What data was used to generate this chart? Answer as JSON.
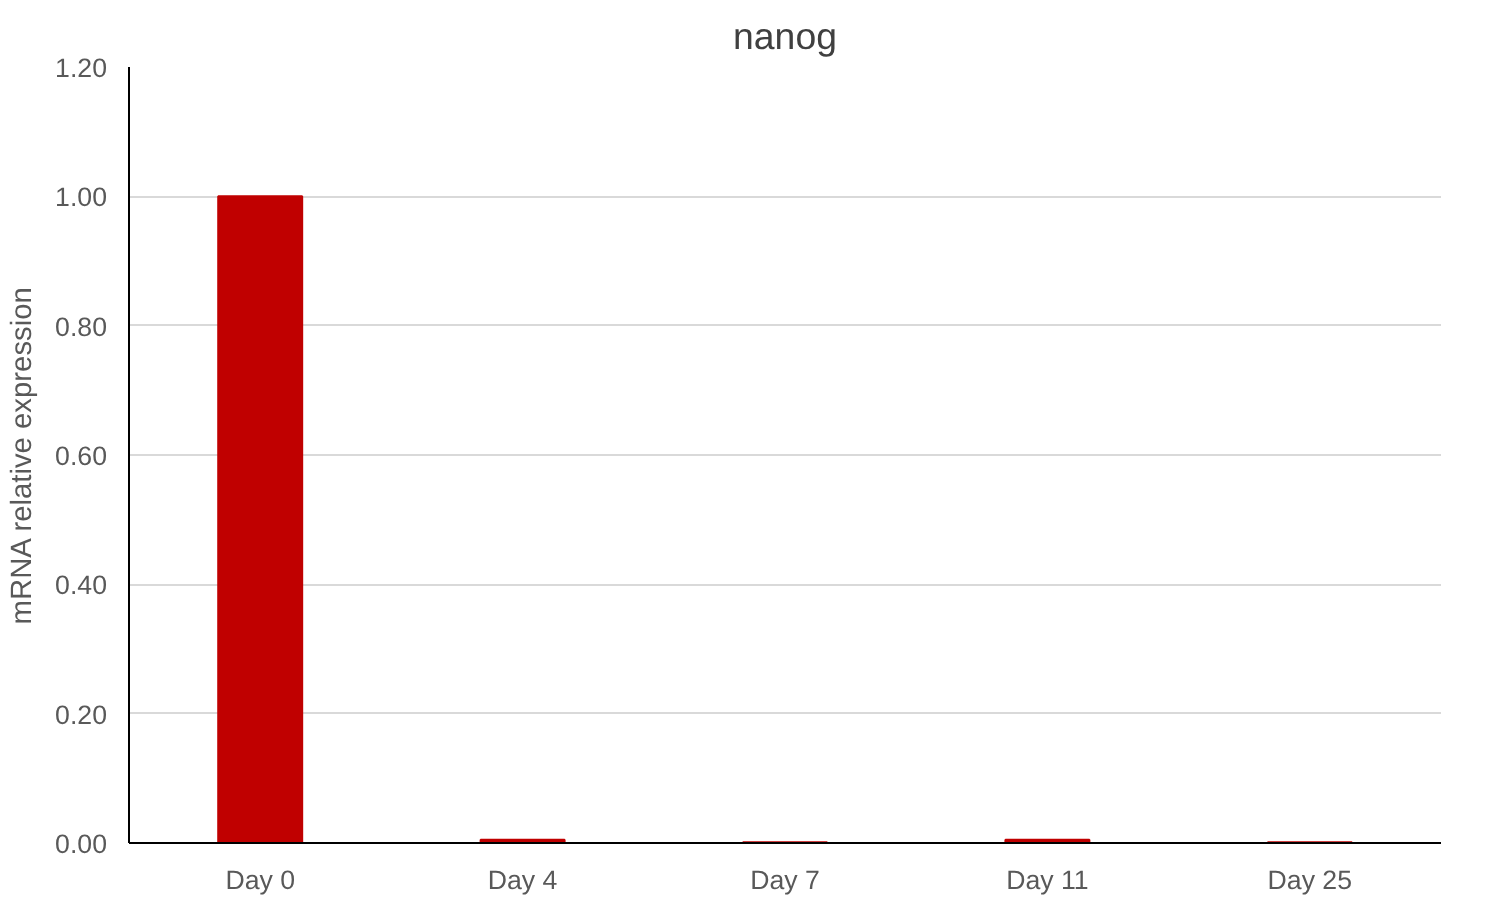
{
  "chart_data": {
    "type": "bar",
    "title": "nanog",
    "ylabel": "mRNA relative expression",
    "categories": [
      "Day 0",
      "Day 4",
      "Day 7",
      "Day 11",
      "Day 25"
    ],
    "values": [
      1.0,
      0.005,
      0.001,
      0.005,
      0.001
    ],
    "color": "#c00000",
    "ylim": [
      0,
      1.2
    ],
    "yticks": [
      {
        "value": 0,
        "label": "0.00"
      },
      {
        "value": 0.2,
        "label": "0.20"
      },
      {
        "value": 0.4,
        "label": "0.40"
      },
      {
        "value": 0.6,
        "label": "0.60"
      },
      {
        "value": 0.8,
        "label": "0.80"
      },
      {
        "value": 1.0,
        "label": "1.00"
      },
      {
        "value": 1.2,
        "label": "1.20"
      }
    ],
    "grid": "y"
  }
}
